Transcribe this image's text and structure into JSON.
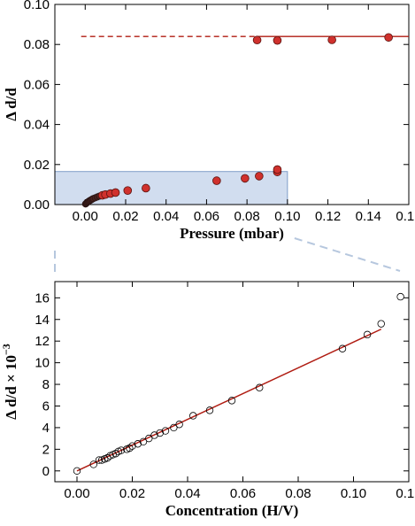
{
  "chart_data": [
    {
      "type": "scatter",
      "xlabel": "Pressure (mbar)",
      "ylabel": "Δ d/d",
      "xlim": [
        -0.015,
        0.16
      ],
      "ylim": [
        0,
        0.1
      ],
      "xticks": [
        "0.00",
        "0.02",
        "0.04",
        "0.06",
        "0.08",
        "0.10",
        "0.12",
        "0.14",
        "0.16"
      ],
      "yticks": [
        "0.00",
        "0.02",
        "0.04",
        "0.06",
        "0.08",
        "0.10"
      ],
      "grid": false,
      "colors": {
        "points": "#d0312d",
        "dark_points": "#4a2320",
        "line": "#b01c12",
        "highlight": "#b9cbe6"
      },
      "series": [
        {
          "points": [
            [
              0.0002,
              0.0003
            ],
            [
              0.0005,
              0.0006
            ],
            [
              0.0008,
              0.0009
            ],
            [
              0.0012,
              0.0012
            ],
            [
              0.0016,
              0.0015
            ],
            [
              0.002,
              0.0018
            ],
            [
              0.0025,
              0.0021
            ],
            [
              0.003,
              0.0024
            ],
            [
              0.0035,
              0.0027
            ],
            [
              0.004,
              0.003
            ],
            [
              0.005,
              0.0034
            ],
            [
              0.006,
              0.0038
            ],
            [
              0.007,
              0.0042
            ],
            [
              0.0085,
              0.0046
            ],
            [
              0.01,
              0.005
            ],
            [
              0.0125,
              0.0055
            ],
            [
              0.015,
              0.006
            ],
            [
              0.021,
              0.007
            ],
            [
              0.03,
              0.0082
            ],
            [
              0.065,
              0.0119
            ],
            [
              0.079,
              0.0131
            ],
            [
              0.086,
              0.0142
            ],
            [
              0.095,
              0.0163
            ],
            [
              0.095,
              0.0175
            ],
            [
              0.085,
              0.0822
            ],
            [
              0.095,
              0.082
            ],
            [
              0.122,
              0.0823
            ],
            [
              0.15,
              0.0835
            ]
          ]
        }
      ],
      "reference_line": {
        "y": 0.084,
        "dashed_from": -0.002,
        "solid_from": 0.085,
        "to": 0.16
      },
      "highlight_region": {
        "x": [
          -0.015,
          0.1
        ],
        "y": [
          0,
          0.0165
        ]
      }
    },
    {
      "type": "scatter",
      "xlabel": "Concentration (H/V)",
      "ylabel": "Δ d/d × 10",
      "ylabel_exponent": "−3",
      "xlim": [
        -0.008,
        0.12
      ],
      "ylim": [
        -1,
        17.5
      ],
      "xticks": [
        "0.00",
        "0.02",
        "0.04",
        "0.06",
        "0.08",
        "0.10",
        "0.12"
      ],
      "yticks": [
        "0",
        "2",
        "4",
        "6",
        "8",
        "10",
        "12",
        "14",
        "16"
      ],
      "grid": false,
      "colors": {
        "points": "#000000",
        "line": "#b01c12"
      },
      "series": [
        {
          "points": [
            [
              0.0,
              0.0
            ],
            [
              0.006,
              0.6
            ],
            [
              0.008,
              1.0
            ],
            [
              0.009,
              1.0
            ],
            [
              0.01,
              1.1
            ],
            [
              0.011,
              1.2
            ],
            [
              0.012,
              1.4
            ],
            [
              0.013,
              1.5
            ],
            [
              0.014,
              1.6
            ],
            [
              0.015,
              1.8
            ],
            [
              0.016,
              1.9
            ],
            [
              0.018,
              2.0
            ],
            [
              0.019,
              2.1
            ],
            [
              0.02,
              2.3
            ],
            [
              0.022,
              2.5
            ],
            [
              0.024,
              2.7
            ],
            [
              0.026,
              3.0
            ],
            [
              0.028,
              3.3
            ],
            [
              0.03,
              3.5
            ],
            [
              0.032,
              3.7
            ],
            [
              0.035,
              4.0
            ],
            [
              0.037,
              4.3
            ],
            [
              0.042,
              5.1
            ],
            [
              0.048,
              5.6
            ],
            [
              0.056,
              6.5
            ],
            [
              0.066,
              7.7
            ],
            [
              0.096,
              11.3
            ],
            [
              0.105,
              12.6
            ],
            [
              0.11,
              13.6
            ],
            [
              0.117,
              16.1
            ]
          ]
        }
      ],
      "fit_line": {
        "x": [
          0.0,
          0.11
        ],
        "y": [
          0.0,
          13.1
        ]
      }
    }
  ]
}
